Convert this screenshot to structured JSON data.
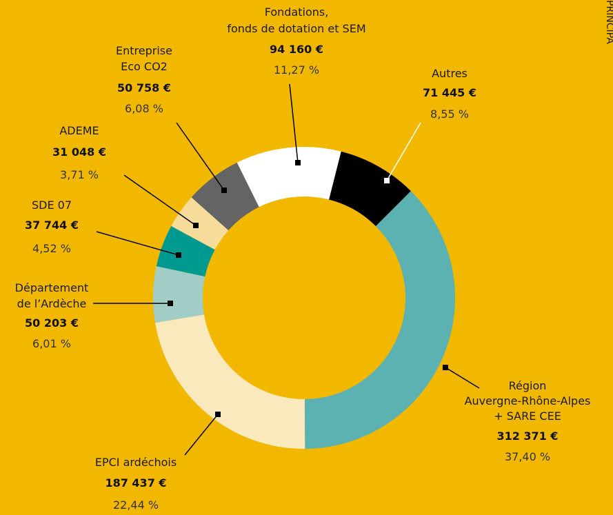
{
  "chart_data": {
    "type": "donut",
    "categories": [
      [
        "Région",
        "Auvergne-Rhône-Alpes",
        "+ SARE CEE"
      ],
      [
        "EPCI ardéchois"
      ],
      [
        "Département",
        "de l’Ardèche"
      ],
      [
        "SDE 07"
      ],
      [
        "ADEME"
      ],
      [
        "Entreprise",
        "Eco CO2"
      ],
      [
        "Fondations,",
        "fonds de dotation et SEM"
      ],
      [
        "Autres"
      ]
    ],
    "amount_labels": [
      "312 371 €",
      "187 437 €",
      "50 203 €",
      "37 744 €",
      "31 048 €",
      "50 758 €",
      "94 160 €",
      "71 445 €"
    ],
    "values": [
      37.4,
      22.44,
      6.01,
      4.52,
      3.71,
      6.08,
      11.27,
      8.55
    ],
    "value_labels": [
      "37,40 %",
      "22,44 %",
      "6,01 %",
      "4,52 %",
      "3,71 %",
      "6,08 %",
      "11,27 %",
      "8,55 %"
    ],
    "colors": [
      "#5bb2b0",
      "#fbe9be",
      "#a2cdc7",
      "#00998f",
      "#f8dc9c",
      "#646464",
      "#ffffff",
      "#000000"
    ],
    "side_label": "PRINCIPA"
  }
}
